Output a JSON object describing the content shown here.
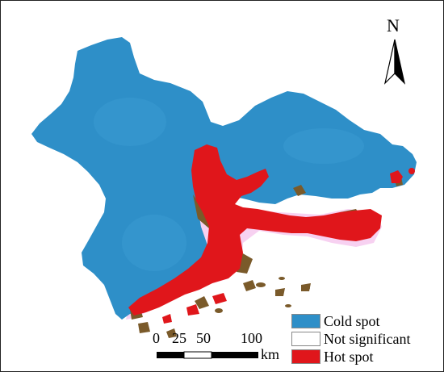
{
  "north_arrow": {
    "label": "N"
  },
  "scale_bar": {
    "ticks": [
      "0",
      "25",
      "50",
      "100"
    ],
    "unit": "km"
  },
  "legend": {
    "items": [
      {
        "label": "Cold spot",
        "color": "#2e8fc8"
      },
      {
        "label": "Not significant",
        "color": "#ffffff"
      },
      {
        "label": "Hot spot",
        "color": "#e0161b"
      }
    ]
  },
  "colors": {
    "cold": "#2e8fc8",
    "hot": "#e0161b",
    "transition": "#7a5a2a",
    "halo": "#f6c9ee"
  }
}
